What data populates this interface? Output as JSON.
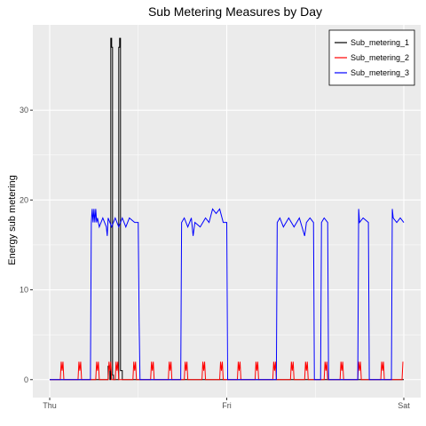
{
  "chart_data": {
    "type": "line",
    "title": "Sub Metering Measures by Day",
    "xlabel": "",
    "ylabel": "Energy sub metering",
    "x_ticks": [
      "Thu",
      "Fri",
      "Sat"
    ],
    "x_tick_values": [
      0,
      1,
      2
    ],
    "y_ticks": [
      0,
      10,
      20,
      30
    ],
    "xlim": [
      0,
      2
    ],
    "ylim": [
      -2,
      39.5
    ],
    "grid": true,
    "legend_position": "top-right",
    "series": [
      {
        "name": "Sub_metering_1",
        "color": "#000000",
        "points": [
          [
            0,
            0
          ],
          [
            0.33,
            0
          ],
          [
            0.33,
            1.5
          ],
          [
            0.34,
            1.5
          ],
          [
            0.34,
            0
          ],
          [
            0.345,
            0
          ],
          [
            0.345,
            38
          ],
          [
            0.35,
            38
          ],
          [
            0.35,
            37
          ],
          [
            0.355,
            37
          ],
          [
            0.355,
            0.5
          ],
          [
            0.36,
            0.5
          ],
          [
            0.36,
            0
          ],
          [
            0.39,
            0
          ],
          [
            0.39,
            37
          ],
          [
            0.395,
            37
          ],
          [
            0.395,
            38
          ],
          [
            0.4,
            38
          ],
          [
            0.4,
            1
          ],
          [
            0.41,
            1
          ],
          [
            0.41,
            0
          ],
          [
            2,
            0
          ]
        ]
      },
      {
        "name": "Sub_metering_2",
        "color": "#ff0000",
        "points": [
          [
            0,
            0
          ],
          [
            0.06,
            0
          ],
          [
            0.065,
            2
          ],
          [
            0.07,
            1
          ],
          [
            0.075,
            2
          ],
          [
            0.08,
            0
          ],
          [
            0.16,
            0
          ],
          [
            0.165,
            2
          ],
          [
            0.17,
            1
          ],
          [
            0.175,
            2
          ],
          [
            0.18,
            0
          ],
          [
            0.26,
            0
          ],
          [
            0.265,
            2
          ],
          [
            0.27,
            1
          ],
          [
            0.275,
            2
          ],
          [
            0.28,
            0
          ],
          [
            0.33,
            0
          ],
          [
            0.335,
            2
          ],
          [
            0.34,
            1
          ],
          [
            0.345,
            2
          ],
          [
            0.35,
            0
          ],
          [
            0.37,
            0
          ],
          [
            0.375,
            2
          ],
          [
            0.38,
            1
          ],
          [
            0.385,
            2
          ],
          [
            0.39,
            0
          ],
          [
            0.47,
            0
          ],
          [
            0.475,
            2
          ],
          [
            0.48,
            1
          ],
          [
            0.485,
            2
          ],
          [
            0.49,
            0
          ],
          [
            0.57,
            0
          ],
          [
            0.575,
            2
          ],
          [
            0.58,
            1
          ],
          [
            0.585,
            2
          ],
          [
            0.59,
            0
          ],
          [
            0.67,
            0
          ],
          [
            0.675,
            2
          ],
          [
            0.68,
            1
          ],
          [
            0.685,
            2
          ],
          [
            0.69,
            0
          ],
          [
            0.76,
            0
          ],
          [
            0.765,
            2
          ],
          [
            0.77,
            1
          ],
          [
            0.775,
            2
          ],
          [
            0.78,
            0
          ],
          [
            0.86,
            0
          ],
          [
            0.865,
            2
          ],
          [
            0.87,
            1
          ],
          [
            0.875,
            2
          ],
          [
            0.88,
            0
          ],
          [
            0.96,
            0
          ],
          [
            0.965,
            2
          ],
          [
            0.97,
            1
          ],
          [
            0.975,
            2
          ],
          [
            0.98,
            0
          ],
          [
            1.06,
            0
          ],
          [
            1.065,
            2
          ],
          [
            1.07,
            1
          ],
          [
            1.075,
            2
          ],
          [
            1.08,
            0
          ],
          [
            1.16,
            0
          ],
          [
            1.165,
            2
          ],
          [
            1.17,
            1
          ],
          [
            1.175,
            2
          ],
          [
            1.18,
            0
          ],
          [
            1.26,
            0
          ],
          [
            1.265,
            2
          ],
          [
            1.27,
            1
          ],
          [
            1.275,
            2
          ],
          [
            1.28,
            0
          ],
          [
            1.36,
            0
          ],
          [
            1.365,
            2
          ],
          [
            1.37,
            1
          ],
          [
            1.375,
            2
          ],
          [
            1.38,
            0
          ],
          [
            1.44,
            0
          ],
          [
            1.445,
            2
          ],
          [
            1.45,
            1
          ],
          [
            1.455,
            2
          ],
          [
            1.46,
            0
          ],
          [
            1.55,
            0
          ],
          [
            1.555,
            2
          ],
          [
            1.56,
            1
          ],
          [
            1.565,
            2
          ],
          [
            1.57,
            0
          ],
          [
            1.64,
            0
          ],
          [
            1.645,
            2
          ],
          [
            1.65,
            1
          ],
          [
            1.655,
            2
          ],
          [
            1.66,
            0
          ],
          [
            1.74,
            0
          ],
          [
            1.745,
            2
          ],
          [
            1.75,
            1
          ],
          [
            1.755,
            2
          ],
          [
            1.76,
            0
          ],
          [
            1.87,
            0
          ],
          [
            1.875,
            2
          ],
          [
            1.88,
            1
          ],
          [
            1.885,
            2
          ],
          [
            1.89,
            0
          ],
          [
            1.99,
            0
          ],
          [
            1.995,
            2
          ]
        ]
      },
      {
        "name": "Sub_metering_3",
        "color": "#0000ff",
        "points": [
          [
            0,
            0
          ],
          [
            0.23,
            0
          ],
          [
            0.235,
            17.5
          ],
          [
            0.24,
            19
          ],
          [
            0.245,
            17.5
          ],
          [
            0.25,
            19
          ],
          [
            0.255,
            17.5
          ],
          [
            0.26,
            19
          ],
          [
            0.265,
            17.5
          ],
          [
            0.27,
            18
          ],
          [
            0.28,
            17
          ],
          [
            0.3,
            18
          ],
          [
            0.32,
            17
          ],
          [
            0.325,
            16
          ],
          [
            0.33,
            18
          ],
          [
            0.35,
            17
          ],
          [
            0.37,
            18
          ],
          [
            0.39,
            17
          ],
          [
            0.41,
            18
          ],
          [
            0.43,
            17
          ],
          [
            0.45,
            18
          ],
          [
            0.48,
            17.5
          ],
          [
            0.5,
            17.5
          ],
          [
            0.505,
            6.5
          ],
          [
            0.51,
            0
          ],
          [
            0.74,
            0
          ],
          [
            0.745,
            17.5
          ],
          [
            0.76,
            18
          ],
          [
            0.78,
            17
          ],
          [
            0.8,
            18
          ],
          [
            0.81,
            16
          ],
          [
            0.82,
            17.5
          ],
          [
            0.85,
            17
          ],
          [
            0.88,
            18
          ],
          [
            0.9,
            17.5
          ],
          [
            0.92,
            19
          ],
          [
            0.94,
            18.5
          ],
          [
            0.96,
            19
          ],
          [
            0.98,
            17.5
          ],
          [
            1.0,
            17.5
          ],
          [
            1.005,
            0
          ],
          [
            1.28,
            0
          ],
          [
            1.285,
            17.5
          ],
          [
            1.3,
            18
          ],
          [
            1.32,
            17
          ],
          [
            1.35,
            18
          ],
          [
            1.38,
            17
          ],
          [
            1.41,
            18
          ],
          [
            1.44,
            16
          ],
          [
            1.45,
            17.5
          ],
          [
            1.47,
            18
          ],
          [
            1.49,
            17.5
          ],
          [
            1.495,
            0
          ],
          [
            1.53,
            0
          ],
          [
            1.535,
            17.5
          ],
          [
            1.55,
            18
          ],
          [
            1.57,
            17.5
          ],
          [
            1.575,
            0
          ],
          [
            1.74,
            0
          ],
          [
            1.745,
            19
          ],
          [
            1.75,
            17.5
          ],
          [
            1.77,
            18
          ],
          [
            1.8,
            17.5
          ],
          [
            1.805,
            0
          ],
          [
            1.93,
            0
          ],
          [
            1.935,
            19
          ],
          [
            1.94,
            18
          ],
          [
            1.96,
            17.5
          ],
          [
            1.98,
            18
          ],
          [
            2.0,
            17.5
          ]
        ]
      }
    ]
  }
}
